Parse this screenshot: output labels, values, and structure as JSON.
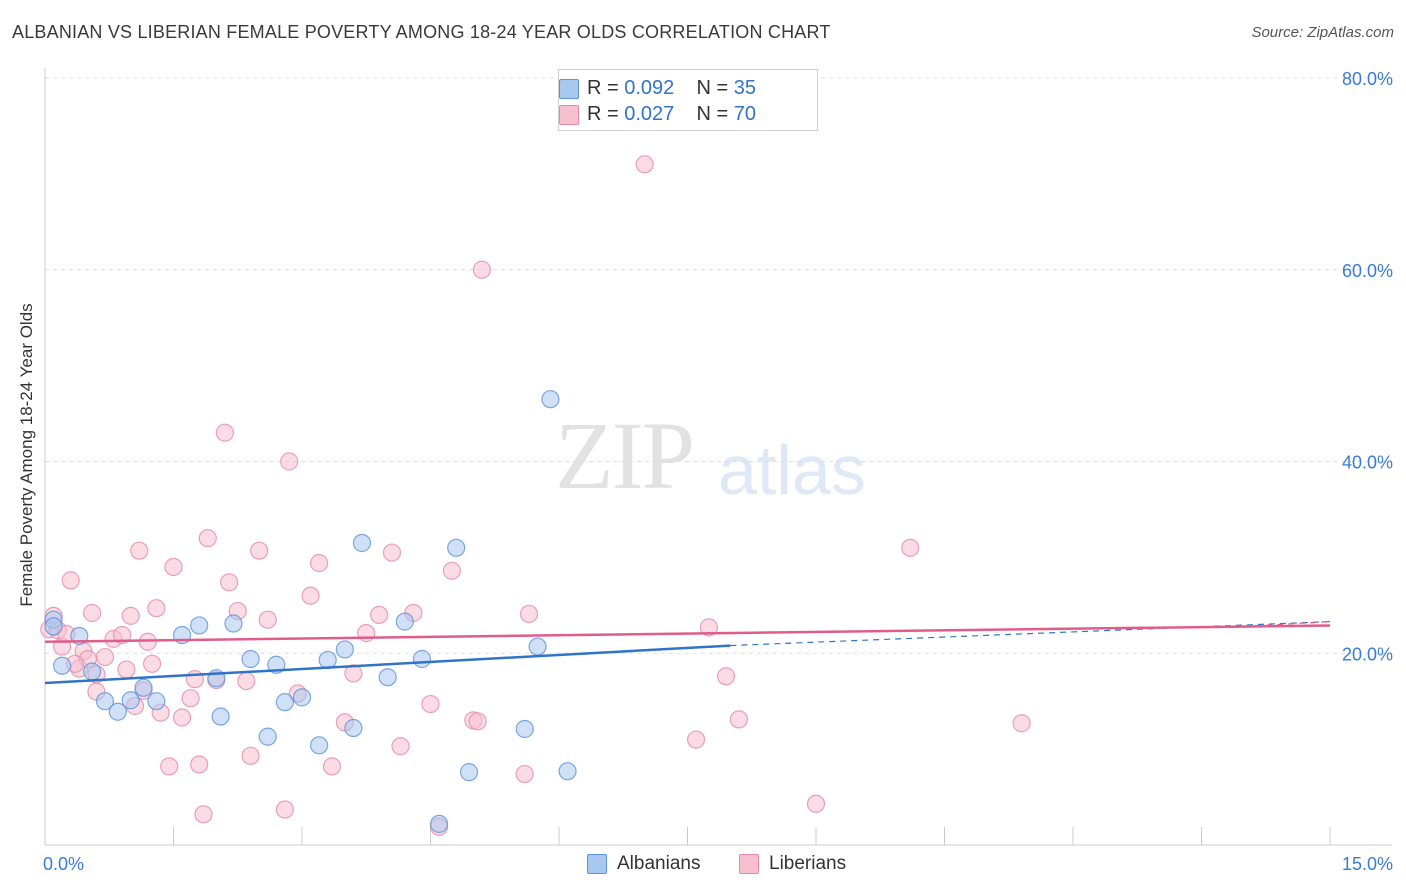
{
  "header": {
    "title": "ALBANIAN VS LIBERIAN FEMALE POVERTY AMONG 18-24 YEAR OLDS CORRELATION CHART",
    "source": "Source: ZipAtlas.com"
  },
  "watermark": {
    "zip": "ZIP",
    "atlas": "atlas"
  },
  "legend": {
    "rows": [
      {
        "r_label": "R = ",
        "r_value": "0.092",
        "n_label": "N = ",
        "n_value": "35"
      },
      {
        "r_label": "R = ",
        "r_value": "0.027",
        "n_label": "N = ",
        "n_value": "70"
      }
    ],
    "bottom": [
      "Albanians",
      "Liberians"
    ]
  },
  "colors": {
    "albanian_fill": "#a9c8f0",
    "albanian_stroke": "#5b93dc",
    "albanian_line": "#2f74c7",
    "liberian_fill": "#f7bfd0",
    "liberian_stroke": "#e68aa9",
    "liberian_line": "#e05c8a",
    "tick_text": "#3a7bd5",
    "grid": "#dddddd"
  },
  "chart_data": {
    "type": "scatter",
    "title": "ALBANIAN VS LIBERIAN FEMALE POVERTY AMONG 18-24 YEAR OLDS CORRELATION CHART",
    "xlabel": "",
    "ylabel": "Female Poverty Among 18-24 Year Olds",
    "xlim": [
      0,
      15
    ],
    "ylim": [
      0,
      80
    ],
    "x_tick_labels": [
      "0.0%",
      "15.0%"
    ],
    "y_tick_labels": [
      "20.0%",
      "40.0%",
      "60.0%",
      "80.0%"
    ],
    "y_ticks": [
      20,
      40,
      60,
      80
    ],
    "grid": true,
    "legend_position": "top-center",
    "series": [
      {
        "name": "Albanians",
        "r": 0.092,
        "n": 35,
        "trend": {
          "x": [
            0,
            8.0
          ],
          "y": [
            16.9,
            20.8
          ]
        },
        "trend_dashed": {
          "x": [
            8.0,
            15.0
          ],
          "y": [
            20.8,
            23.3
          ]
        },
        "points": [
          [
            0.1,
            23.5
          ],
          [
            0.2,
            18.7
          ],
          [
            0.4,
            21.8
          ],
          [
            0.55,
            18.1
          ],
          [
            0.7,
            15.0
          ],
          [
            0.85,
            13.9
          ],
          [
            1.0,
            15.1
          ],
          [
            1.15,
            16.4
          ],
          [
            1.3,
            15.0
          ],
          [
            1.6,
            21.9
          ],
          [
            1.8,
            22.9
          ],
          [
            2.0,
            17.4
          ],
          [
            2.05,
            13.4
          ],
          [
            2.2,
            23.1
          ],
          [
            2.4,
            19.4
          ],
          [
            2.6,
            11.3
          ],
          [
            2.7,
            18.8
          ],
          [
            2.8,
            14.9
          ],
          [
            3.0,
            15.4
          ],
          [
            3.2,
            10.4
          ],
          [
            3.3,
            19.3
          ],
          [
            3.5,
            20.4
          ],
          [
            3.6,
            12.2
          ],
          [
            3.7,
            31.5
          ],
          [
            4.0,
            17.5
          ],
          [
            4.2,
            23.3
          ],
          [
            4.4,
            19.4
          ],
          [
            4.6,
            2.2
          ],
          [
            4.8,
            31.0
          ],
          [
            4.95,
            7.6
          ],
          [
            5.6,
            12.1
          ],
          [
            5.75,
            20.7
          ],
          [
            5.9,
            46.5
          ],
          [
            6.1,
            7.7
          ],
          [
            0.1,
            22.8
          ]
        ]
      },
      {
        "name": "Liberians",
        "r": 0.027,
        "n": 70,
        "trend": {
          "x": [
            0,
            15.0
          ],
          "y": [
            21.2,
            22.9
          ]
        },
        "trend_dashed": {
          "x": [
            14.0,
            15.0
          ],
          "y": [
            22.8,
            23.3
          ]
        },
        "points": [
          [
            0.05,
            22.5
          ],
          [
            0.1,
            23.9
          ],
          [
            0.2,
            20.7
          ],
          [
            0.3,
            27.6
          ],
          [
            0.4,
            18.4
          ],
          [
            0.45,
            20.2
          ],
          [
            0.5,
            19.4
          ],
          [
            0.55,
            24.2
          ],
          [
            0.6,
            17.8
          ],
          [
            0.7,
            19.6
          ],
          [
            0.8,
            21.5
          ],
          [
            0.9,
            21.9
          ],
          [
            0.95,
            18.3
          ],
          [
            1.0,
            23.9
          ],
          [
            1.05,
            14.5
          ],
          [
            1.1,
            30.7
          ],
          [
            1.15,
            16.1
          ],
          [
            1.2,
            21.2
          ],
          [
            1.3,
            24.7
          ],
          [
            1.35,
            13.8
          ],
          [
            1.45,
            8.2
          ],
          [
            1.5,
            29.0
          ],
          [
            1.6,
            13.3
          ],
          [
            1.7,
            15.3
          ],
          [
            1.75,
            17.3
          ],
          [
            1.8,
            8.4
          ],
          [
            1.85,
            3.2
          ],
          [
            1.9,
            32.0
          ],
          [
            2.1,
            43.0
          ],
          [
            2.15,
            27.4
          ],
          [
            2.25,
            24.4
          ],
          [
            2.35,
            17.1
          ],
          [
            2.4,
            9.3
          ],
          [
            2.5,
            30.7
          ],
          [
            2.6,
            23.5
          ],
          [
            2.8,
            3.7
          ],
          [
            2.85,
            40.0
          ],
          [
            2.95,
            15.8
          ],
          [
            3.1,
            26.0
          ],
          [
            3.2,
            29.4
          ],
          [
            3.35,
            8.2
          ],
          [
            3.6,
            17.9
          ],
          [
            3.75,
            22.1
          ],
          [
            3.9,
            24.0
          ],
          [
            4.05,
            30.5
          ],
          [
            4.15,
            10.3
          ],
          [
            4.3,
            24.2
          ],
          [
            4.5,
            14.7
          ],
          [
            4.6,
            1.9
          ],
          [
            4.75,
            28.6
          ],
          [
            5.0,
            13.0
          ],
          [
            5.05,
            12.9
          ],
          [
            5.1,
            60.0
          ],
          [
            5.6,
            7.4
          ],
          [
            5.65,
            24.1
          ],
          [
            7.0,
            71.0
          ],
          [
            7.6,
            11.0
          ],
          [
            7.75,
            22.7
          ],
          [
            7.95,
            17.6
          ],
          [
            8.1,
            13.1
          ],
          [
            9.0,
            4.3
          ],
          [
            10.1,
            31.0
          ],
          [
            11.4,
            12.7
          ],
          [
            0.15,
            22.4
          ],
          [
            0.25,
            22.0
          ],
          [
            0.35,
            18.9
          ],
          [
            1.25,
            18.9
          ],
          [
            2.0,
            17.2
          ],
          [
            3.5,
            12.8
          ],
          [
            0.6,
            16.0
          ]
        ]
      }
    ]
  }
}
